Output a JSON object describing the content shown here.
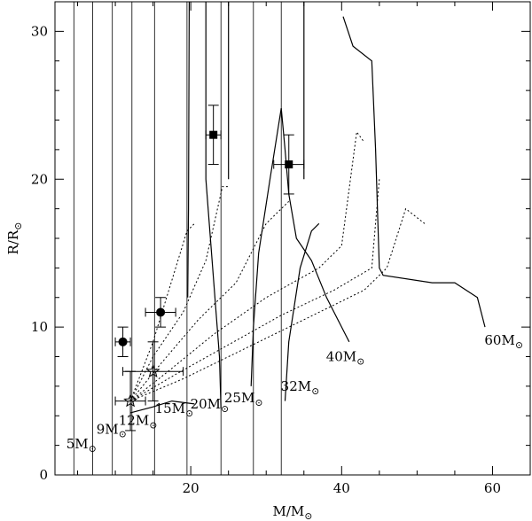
{
  "chart_data": {
    "type": "scatter",
    "xlabel": "M/M",
    "ylabel": "R/R",
    "xlim": [
      2,
      65
    ],
    "ylim": [
      0,
      32
    ],
    "xticks": [
      20,
      40,
      60
    ],
    "yticks": [
      0,
      10,
      20,
      30
    ],
    "sun_symbol": "⊙",
    "colors": {
      "ink": "#000000",
      "background": "#ffffff"
    },
    "series": [
      {
        "kind": "solid-tracks",
        "curves": [
          {
            "mass_label": "5M⊙",
            "points": [
              [
                2,
                1.6
              ],
              [
                4,
                2.6
              ],
              [
                4.5,
                2.9
              ],
              [
                4.6,
                6
              ],
              [
                4.6,
                32
              ]
            ]
          },
          {
            "mass_label": "9M⊙",
            "points": [
              [
                7,
                4.0
              ],
              [
                7.1,
                6
              ],
              [
                7.1,
                32
              ]
            ]
          },
          {
            "mass_label": "12M⊙",
            "points": [
              [
                9.5,
                4.7
              ],
              [
                9.6,
                8
              ],
              [
                9.6,
                32
              ]
            ]
          },
          {
            "mass_label": "15M⊙",
            "points": [
              [
                12,
                5.0
              ],
              [
                12.1,
                8
              ],
              [
                12.1,
                32
              ]
            ]
          },
          {
            "mass_label": "20M⊙",
            "points": [
              [
                15,
                5.2
              ],
              [
                15.1,
                9
              ],
              [
                15.1,
                32
              ]
            ]
          },
          {
            "mass_label": "25M⊙",
            "points": [
              [
                19.5,
                13.5
              ],
              [
                19.6,
                20
              ],
              [
                19.7,
                32
              ]
            ]
          },
          {
            "mass_label": "32M⊙",
            "points": [
              [
                24,
                12
              ],
              [
                23.8,
                32
              ]
            ]
          },
          {
            "mass_label": "40M⊙",
            "points": [
              [
                28,
                19
              ],
              [
                28.2,
                32
              ]
            ]
          },
          {
            "mass_label": "60M⊙",
            "points": [
              [
                32,
                24.8
              ],
              [
                32,
                32
              ]
            ]
          }
        ]
      },
      {
        "kind": "dotted-tracks",
        "curves": [
          {
            "points": [
              [
                12,
                5.0
              ],
              [
                15,
                9
              ],
              [
                18,
                14
              ],
              [
                19.5,
                16.5
              ],
              [
                20.5,
                17
              ]
            ]
          },
          {
            "points": [
              [
                12,
                5.0
              ],
              [
                15,
                8
              ],
              [
                19,
                11
              ],
              [
                22,
                14.5
              ],
              [
                24.2,
                19.5
              ],
              [
                25,
                19.5
              ]
            ]
          },
          {
            "points": [
              [
                12,
                5.0
              ],
              [
                16,
                7.5
              ],
              [
                21,
                10.5
              ],
              [
                26,
                13
              ],
              [
                30,
                17
              ],
              [
                33,
                18.5
              ]
            ]
          },
          {
            "points": [
              [
                12,
                5.0
              ],
              [
                17,
                7
              ],
              [
                23,
                9.5
              ],
              [
                30,
                12
              ],
              [
                37,
                14
              ],
              [
                40,
                15.5
              ],
              [
                42,
                23.2
              ],
              [
                43,
                22.5
              ]
            ]
          },
          {
            "points": [
              [
                12,
                5.0
              ],
              [
                18,
                6.8
              ],
              [
                25,
                8.8
              ],
              [
                32,
                10.8
              ],
              [
                39,
                12.5
              ],
              [
                44,
                14
              ],
              [
                45,
                20
              ]
            ]
          },
          {
            "points": [
              [
                12,
                5.0
              ],
              [
                19,
                6.5
              ],
              [
                27,
                8.5
              ],
              [
                35,
                10.5
              ],
              [
                43,
                12.5
              ],
              [
                46,
                14
              ],
              [
                48.5,
                18
              ],
              [
                51,
                17
              ]
            ]
          }
        ]
      },
      {
        "kind": "solid-vertical-tracks",
        "curves": [
          {
            "points": [
              [
                4.5,
                0
              ],
              [
                4.5,
                32
              ]
            ]
          },
          {
            "points": [
              [
                7,
                0
              ],
              [
                7,
                32
              ]
            ]
          },
          {
            "points": [
              [
                9.6,
                0
              ],
              [
                9.6,
                32
              ]
            ]
          },
          {
            "points": [
              [
                12.2,
                0
              ],
              [
                12.2,
                32
              ]
            ]
          },
          {
            "points": [
              [
                15.2,
                0
              ],
              [
                15.2,
                32
              ]
            ]
          },
          {
            "points": [
              [
                19.5,
                0
              ],
              [
                19.5,
                32
              ]
            ]
          },
          {
            "points": [
              [
                24,
                0
              ],
              [
                24,
                32
              ]
            ]
          },
          {
            "points": [
              [
                28.3,
                0
              ],
              [
                28.3,
                32
              ]
            ]
          },
          {
            "points": [
              [
                32,
                0
              ],
              [
                32,
                32
              ]
            ]
          }
        ]
      },
      {
        "kind": "lines",
        "curves": [
          {
            "points": [
              [
                19.6,
                12
              ],
              [
                19.7,
                18
              ],
              [
                19.8,
                32
              ]
            ]
          },
          {
            "points": [
              [
                25,
                20
              ],
              [
                25,
                32
              ]
            ]
          },
          {
            "points": [
              [
                35,
                20
              ],
              [
                35,
                32
              ]
            ]
          },
          {
            "points": [
              [
                24,
                4.5
              ],
              [
                23.8,
                8
              ],
              [
                22,
                20
              ],
              [
                22,
                32
              ]
            ]
          },
          {
            "points": [
              [
                28,
                6
              ],
              [
                28.3,
                10
              ],
              [
                29,
                15
              ],
              [
                30.5,
                20
              ],
              [
                32,
                24.8
              ],
              [
                32.5,
                22
              ],
              [
                33,
                19
              ],
              [
                34,
                16
              ],
              [
                36,
                14.5
              ],
              [
                38,
                12
              ],
              [
                40,
                10
              ],
              [
                41,
                9
              ]
            ]
          },
          {
            "points": [
              [
                32.5,
                5
              ],
              [
                33,
                9
              ],
              [
                34.5,
                14
              ],
              [
                36,
                16.5
              ],
              [
                37,
                17
              ]
            ]
          },
          {
            "points": [
              [
                40.2,
                31
              ],
              [
                41.5,
                29
              ],
              [
                44,
                28
              ],
              [
                44.5,
                22
              ],
              [
                45,
                14
              ],
              [
                45.5,
                13.5
              ],
              [
                52,
                13
              ],
              [
                55,
                13
              ],
              [
                58,
                12
              ],
              [
                59,
                10
              ]
            ]
          },
          {
            "points": [
              [
                12,
                4.2
              ],
              [
                15,
                4.6
              ],
              [
                17.5,
                5
              ],
              [
                20.5,
                4.8
              ]
            ]
          }
        ]
      },
      {
        "kind": "circles-with-errors",
        "points": [
          {
            "x": 11,
            "y": 9,
            "xerr": 1,
            "yerr": 1
          },
          {
            "x": 16,
            "y": 11,
            "xerr": 2,
            "yerr": 1
          }
        ]
      },
      {
        "kind": "squares-with-errors",
        "points": [
          {
            "x": 23,
            "y": 23,
            "xerr": 1,
            "yerr": 2
          },
          {
            "x": 33,
            "y": 21,
            "xerr": 2,
            "yerr": 2
          }
        ]
      },
      {
        "kind": "stars-with-errors",
        "points": [
          {
            "x": 12,
            "y": 5,
            "xerr": 2,
            "yerr": 2
          },
          {
            "x": 15,
            "y": 7,
            "xerr": 4,
            "yerr": 2
          }
        ]
      }
    ],
    "curve_labels": [
      {
        "base": "5M",
        "x": 5.5,
        "y": 1.8
      },
      {
        "base": "9M",
        "x": 9.5,
        "y": 2.8
      },
      {
        "base": "12M",
        "x": 13,
        "y": 3.4
      },
      {
        "base": "15M",
        "x": 17.8,
        "y": 4.2
      },
      {
        "base": "20M",
        "x": 22.5,
        "y": 4.5
      },
      {
        "base": "25M",
        "x": 27,
        "y": 4.9
      },
      {
        "base": "32M",
        "x": 34.5,
        "y": 5.7
      },
      {
        "base": "40M",
        "x": 40.5,
        "y": 7.7
      },
      {
        "base": "60M",
        "x": 61.5,
        "y": 8.8
      }
    ],
    "grid": false
  }
}
